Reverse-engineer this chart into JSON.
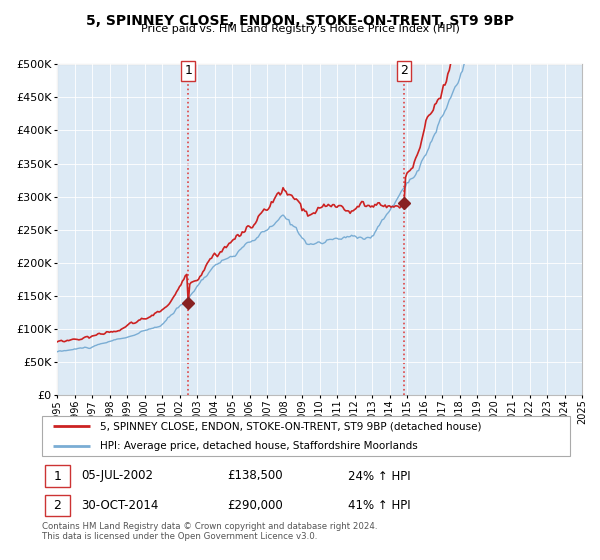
{
  "title": "5, SPINNEY CLOSE, ENDON, STOKE-ON-TRENT, ST9 9BP",
  "subtitle": "Price paid vs. HM Land Registry's House Price Index (HPI)",
  "legend_line1": "5, SPINNEY CLOSE, ENDON, STOKE-ON-TRENT, ST9 9BP (detached house)",
  "legend_line2": "HPI: Average price, detached house, Staffordshire Moorlands",
  "sale1_date": "05-JUL-2002",
  "sale1_price": 138500,
  "sale1_hpi_text": "24% ↑ HPI",
  "sale2_date": "30-OCT-2014",
  "sale2_price": 290000,
  "sale2_hpi_text": "41% ↑ HPI",
  "footer": "Contains HM Land Registry data © Crown copyright and database right 2024.\nThis data is licensed under the Open Government Licence v3.0.",
  "hpi_color": "#7aadd4",
  "price_color": "#cc2222",
  "marker_color": "#882222",
  "vline_color": "#dd4444",
  "background_color": "#ddeaf5",
  "ylim": [
    0,
    500000
  ],
  "yticks": [
    0,
    50000,
    100000,
    150000,
    200000,
    250000,
    300000,
    350000,
    400000,
    450000,
    500000
  ],
  "sale1_x": 2002.5,
  "sale2_x": 2014.83,
  "xlim_start": 1995,
  "xlim_end": 2025
}
